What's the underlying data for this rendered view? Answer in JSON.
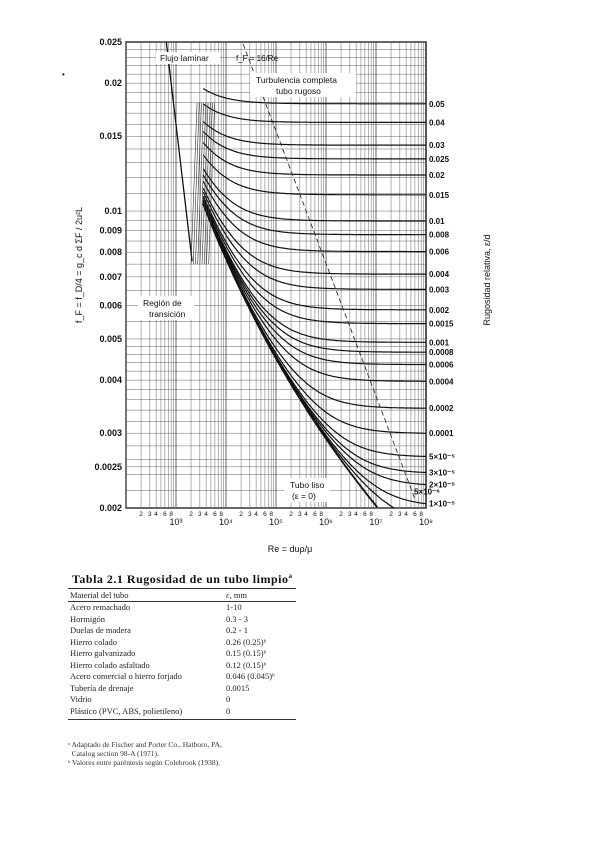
{
  "chart_data": {
    "type": "line",
    "title": "",
    "x_scale": "log",
    "y_scale": "log",
    "xlim": [
      100,
      100000000
    ],
    "ylim": [
      0.002,
      0.025
    ],
    "grid": true,
    "xlabel": "Re = duρ/μ",
    "ylabel": "f_F = f_D/4 = g_c d ΣF / 2u²L",
    "right_axis_label": "Rugosidad relativa, ε/d",
    "y_tick_labels": [
      {
        "v": 0.025,
        "t": "0.025"
      },
      {
        "v": 0.02,
        "t": "0.02"
      },
      {
        "v": 0.015,
        "t": "0.015"
      },
      {
        "v": 0.01,
        "t": "0.01"
      },
      {
        "v": 0.009,
        "t": "0.009"
      },
      {
        "v": 0.008,
        "t": "0.008"
      },
      {
        "v": 0.007,
        "t": "0.007"
      },
      {
        "v": 0.006,
        "t": "0.006"
      },
      {
        "v": 0.005,
        "t": "0.005"
      },
      {
        "v": 0.004,
        "t": "0.004"
      },
      {
        "v": 0.003,
        "t": "0.003"
      },
      {
        "v": 0.0025,
        "t": "0.0025"
      },
      {
        "v": 0.002,
        "t": "0.002"
      }
    ],
    "x_decade_labels": [
      "10³",
      "10⁴",
      "10⁵",
      "10⁶",
      "10⁷",
      "10⁸"
    ],
    "x_minor_labels": [
      "2",
      "3",
      "4",
      "6",
      "8"
    ],
    "laminar": {
      "label": "Flujo laminar",
      "formula": "f_F = 16/Re"
    },
    "annotations": {
      "turbulence": [
        "Turbulencia completa",
        "tubo rugoso"
      ],
      "transition": [
        "Región de",
        "transición"
      ],
      "smooth": [
        "Tubo liso",
        "(ε = 0)"
      ]
    },
    "roughness_curves": [
      {
        "r": 0.05,
        "label": "0.05"
      },
      {
        "r": 0.04,
        "label": "0.04"
      },
      {
        "r": 0.03,
        "label": "0.03"
      },
      {
        "r": 0.025,
        "label": "0.025"
      },
      {
        "r": 0.02,
        "label": "0.02"
      },
      {
        "r": 0.015,
        "label": "0.015"
      },
      {
        "r": 0.01,
        "label": "0.01"
      },
      {
        "r": 0.008,
        "label": "0.008"
      },
      {
        "r": 0.006,
        "label": "0.006"
      },
      {
        "r": 0.004,
        "label": "0.004"
      },
      {
        "r": 0.003,
        "label": "0.003"
      },
      {
        "r": 0.002,
        "label": "0.002"
      },
      {
        "r": 0.0015,
        "label": "0.0015"
      },
      {
        "r": 0.001,
        "label": "0.001"
      },
      {
        "r": 0.0008,
        "label": "0.0008"
      },
      {
        "r": 0.0006,
        "label": "0.0006"
      },
      {
        "r": 0.0004,
        "label": "0.0004"
      },
      {
        "r": 0.0002,
        "label": "0.0002"
      },
      {
        "r": 0.0001,
        "label": "0.0001"
      },
      {
        "r": 5e-05,
        "label": "5×10⁻⁵"
      },
      {
        "r": 3e-05,
        "label": "3×10⁻⁵"
      },
      {
        "r": 2e-05,
        "label": "2×10⁻⁵"
      },
      {
        "r": 1e-05,
        "label": "1×10⁻⁵"
      },
      {
        "r": 5e-06,
        "label": "5×10⁻⁶"
      }
    ]
  },
  "table": {
    "title": "Tabla 2.1  Rugosidad de un tubo limpio",
    "title_sup": "a",
    "col_material": "Material del tubo",
    "col_eps": "ε, mm",
    "rows": [
      {
        "material": "Acero remachado",
        "eps": "1-10"
      },
      {
        "material": "Hormigón",
        "eps": "0.3 - 3"
      },
      {
        "material": "Duelas de madera",
        "eps": "0.2 - 1"
      },
      {
        "material": "Hierro colado",
        "eps": "0.26 (0.25)ᵇ"
      },
      {
        "material": "Hierro galvanizado",
        "eps": "0.15 (0.15)ᵇ"
      },
      {
        "material": "Hierro colado asfaltado",
        "eps": "0.12 (0.15)ᵇ"
      },
      {
        "material": "Acero comercial o hierro forjado",
        "eps": "0.046 (0.045)ᵇ"
      },
      {
        "material": "Tubería de drenaje",
        "eps": "0.0015"
      },
      {
        "material": "Vidrio",
        "eps": "0"
      },
      {
        "material": "Plástico (PVC, ABS, polietileno)",
        "eps": "0"
      }
    ]
  },
  "footnotes": [
    "ᵃ Adaptado de Fischer and Porter Co., Hatboro, PA,",
    "  Catalog section 98-A (1971).",
    "ᵇ Valores entre paréntesis según Colebrook (1938)."
  ]
}
